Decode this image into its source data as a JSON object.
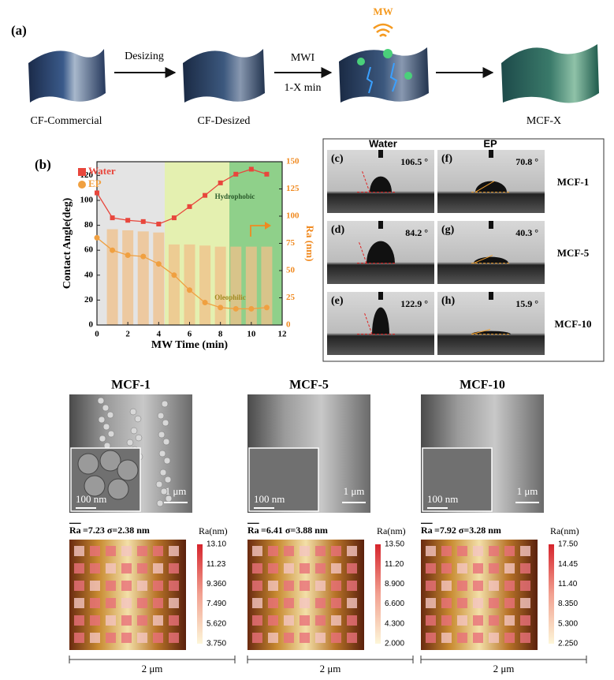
{
  "panel_a": {
    "label": "(a)",
    "icon_label": "MW",
    "arrows": [
      {
        "top": "Desizing"
      },
      {
        "top": "MWI",
        "bottom": "1-X min"
      }
    ],
    "samples": [
      "CF-Commercial",
      "CF-Desized",
      "MCF-X"
    ]
  },
  "chart_data": {
    "type": "line",
    "panel_label": "(b)",
    "xlabel": "MW Time (min)",
    "ylabel": "Contact Angle(deg)",
    "y2label": "Ra (nm)",
    "annotations": [
      "Hydrophobic",
      "Oleophilic"
    ],
    "xlim": [
      0,
      12
    ],
    "xticks": [
      0,
      2,
      4,
      6,
      8,
      10,
      12
    ],
    "ylim": [
      0,
      131
    ],
    "yticks": [
      0,
      20,
      40,
      60,
      80,
      100,
      120
    ],
    "y2lim": [
      0,
      150
    ],
    "y2ticks": [
      0,
      25,
      50,
      75,
      100,
      125,
      150
    ],
    "series": [
      {
        "name": "Water",
        "color": "#e8463c",
        "marker": "square",
        "x": [
          0,
          1,
          2,
          3,
          4,
          5,
          6,
          7,
          8,
          9,
          10,
          11
        ],
        "values": [
          106,
          86,
          84,
          83,
          81,
          86,
          95,
          104,
          114,
          121,
          125,
          121
        ]
      },
      {
        "name": "EP",
        "color": "#f0a040",
        "marker": "circle",
        "x": [
          0,
          1,
          2,
          3,
          4,
          5,
          6,
          7,
          8,
          9,
          10,
          11
        ],
        "values": [
          70,
          60,
          56,
          55,
          49,
          40,
          28,
          18,
          14,
          13,
          13,
          14
        ]
      },
      {
        "type": "bar",
        "axis": "y2",
        "color": "#f0c08a",
        "x": [
          1,
          2,
          3,
          4,
          5,
          6,
          7,
          8,
          9,
          10,
          11
        ],
        "values": [
          88,
          87,
          86,
          85,
          74,
          74,
          73,
          72,
          72,
          72,
          72
        ]
      }
    ]
  },
  "panel_wetting": {
    "headers": [
      "Water",
      "EP"
    ],
    "rows": [
      {
        "name": "MCF-1",
        "water": {
          "label": "(c)",
          "angle": "106.5 °"
        },
        "ep": {
          "label": "(f)",
          "angle": "70.8 °"
        }
      },
      {
        "name": "MCF-5",
        "water": {
          "label": "(d)",
          "angle": "84.2 °"
        },
        "ep": {
          "label": "(g)",
          "angle": "40.3 °"
        }
      },
      {
        "name": "MCF-10",
        "water": {
          "label": "(e)",
          "angle": "122.9 °"
        },
        "ep": {
          "label": "(h)",
          "angle": "15.9 °"
        }
      }
    ]
  },
  "sem": [
    {
      "title": "MCF-1",
      "inset_scale": "100 nm",
      "scale": "1 μm"
    },
    {
      "title": "MCF-5",
      "inset_scale": "100 nm",
      "scale": "1 μm"
    },
    {
      "title": "MCF-10",
      "inset_scale": "100 nm",
      "scale": "1 μm"
    }
  ],
  "afm": [
    {
      "ra_label": "Ra",
      "stats": "=7.23  σ=2.38 nm",
      "colorbar_title": "Ra(nm)",
      "ticks": [
        "13.10",
        "11.23",
        "9.360",
        "7.490",
        "5.620",
        "3.750"
      ],
      "scale": "2 μm"
    },
    {
      "ra_label": "Ra",
      "stats": "=6.41  σ=3.88 nm",
      "colorbar_title": "Ra(nm)",
      "ticks": [
        "13.50",
        "11.20",
        "8.900",
        "6.600",
        "4.300",
        "2.000"
      ],
      "scale": "2 μm"
    },
    {
      "ra_label": "Ra",
      "stats": "=7.92  σ=3.28 nm",
      "colorbar_title": "Ra(nm)",
      "ticks": [
        "17.50",
        "14.45",
        "11.40",
        "8.350",
        "5.300",
        "2.250"
      ],
      "scale": "2 μm"
    }
  ]
}
